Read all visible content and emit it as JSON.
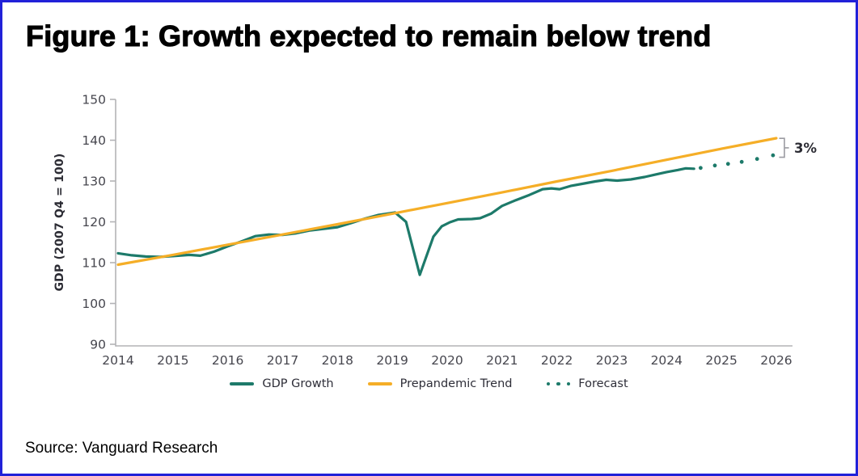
{
  "frame": {
    "title": "Figure 1: Growth expected to remain below trend",
    "source": "Source: Vanguard Research"
  },
  "colors": {
    "border_blue": "#2121d8",
    "gdp_teal": "#1d7a6a",
    "trend_amber": "#f5ae27",
    "axis_gray": "#b3b3b6",
    "bracket_gray": "#9b9ba1",
    "tick_text": "#46464e"
  },
  "chart_data": {
    "type": "line",
    "title": "",
    "xlabel": "",
    "ylabel": "GDP (2007 Q4 = 100)",
    "ylim": [
      90,
      150
    ],
    "xlim": [
      2014,
      2026
    ],
    "grid": false,
    "legend_position": "bottom",
    "yticks": [
      90,
      100,
      110,
      120,
      130,
      140,
      150
    ],
    "xticks": [
      2014,
      2015,
      2016,
      2017,
      2018,
      2019,
      2020,
      2021,
      2022,
      2023,
      2024,
      2025,
      2026
    ],
    "annotation": {
      "label": "3%"
    },
    "series": [
      {
        "name": "GDP Growth",
        "style": "solid",
        "color": "#1d7a6a",
        "points": [
          [
            2014.0,
            112.3
          ],
          [
            2014.25,
            111.8
          ],
          [
            2014.5,
            111.5
          ],
          [
            2014.75,
            111.4
          ],
          [
            2015.0,
            111.6
          ],
          [
            2015.3,
            111.9
          ],
          [
            2015.5,
            111.7
          ],
          [
            2015.75,
            112.7
          ],
          [
            2016.0,
            114.0
          ],
          [
            2016.25,
            115.2
          ],
          [
            2016.5,
            116.5
          ],
          [
            2016.75,
            116.9
          ],
          [
            2017.0,
            116.8
          ],
          [
            2017.25,
            117.2
          ],
          [
            2017.5,
            117.9
          ],
          [
            2017.75,
            118.3
          ],
          [
            2018.0,
            118.7
          ],
          [
            2018.25,
            119.7
          ],
          [
            2018.5,
            120.8
          ],
          [
            2018.75,
            121.7
          ],
          [
            2019.05,
            122.3
          ],
          [
            2019.25,
            120.0
          ],
          [
            2019.5,
            107.0
          ],
          [
            2019.75,
            116.4
          ],
          [
            2019.9,
            118.9
          ],
          [
            2020.05,
            119.9
          ],
          [
            2020.2,
            120.6
          ],
          [
            2020.45,
            120.7
          ],
          [
            2020.6,
            120.9
          ],
          [
            2020.8,
            122.0
          ],
          [
            2021.0,
            123.9
          ],
          [
            2021.25,
            125.3
          ],
          [
            2021.5,
            126.6
          ],
          [
            2021.74,
            128.0
          ],
          [
            2021.9,
            128.2
          ],
          [
            2022.05,
            128.0
          ],
          [
            2022.25,
            128.8
          ],
          [
            2022.5,
            129.4
          ],
          [
            2022.7,
            129.9
          ],
          [
            2022.9,
            130.3
          ],
          [
            2023.1,
            130.1
          ],
          [
            2023.35,
            130.4
          ],
          [
            2023.6,
            131.0
          ],
          [
            2023.8,
            131.6
          ],
          [
            2024.0,
            132.2
          ],
          [
            2024.2,
            132.7
          ],
          [
            2024.35,
            133.1
          ],
          [
            2024.5,
            133.0
          ]
        ]
      },
      {
        "name": "Prepandemic Trend",
        "style": "solid",
        "color": "#f5ae27",
        "points": [
          [
            2014,
            109.5
          ],
          [
            2015,
            111.9
          ],
          [
            2016,
            114.4
          ],
          [
            2017,
            116.9
          ],
          [
            2018,
            119.4
          ],
          [
            2019,
            122.0
          ],
          [
            2020,
            124.6
          ],
          [
            2021,
            127.2
          ],
          [
            2022,
            129.9
          ],
          [
            2023,
            132.5
          ],
          [
            2024,
            135.2
          ],
          [
            2025,
            137.9
          ],
          [
            2026,
            140.5
          ]
        ]
      },
      {
        "name": "Forecast",
        "style": "dots",
        "color": "#1d7a6a",
        "points": [
          [
            2024.62,
            133.2
          ],
          [
            2024.88,
            133.8
          ],
          [
            2025.12,
            134.2
          ],
          [
            2025.37,
            134.7
          ],
          [
            2025.65,
            135.4
          ],
          [
            2025.94,
            136.3
          ]
        ]
      }
    ]
  }
}
